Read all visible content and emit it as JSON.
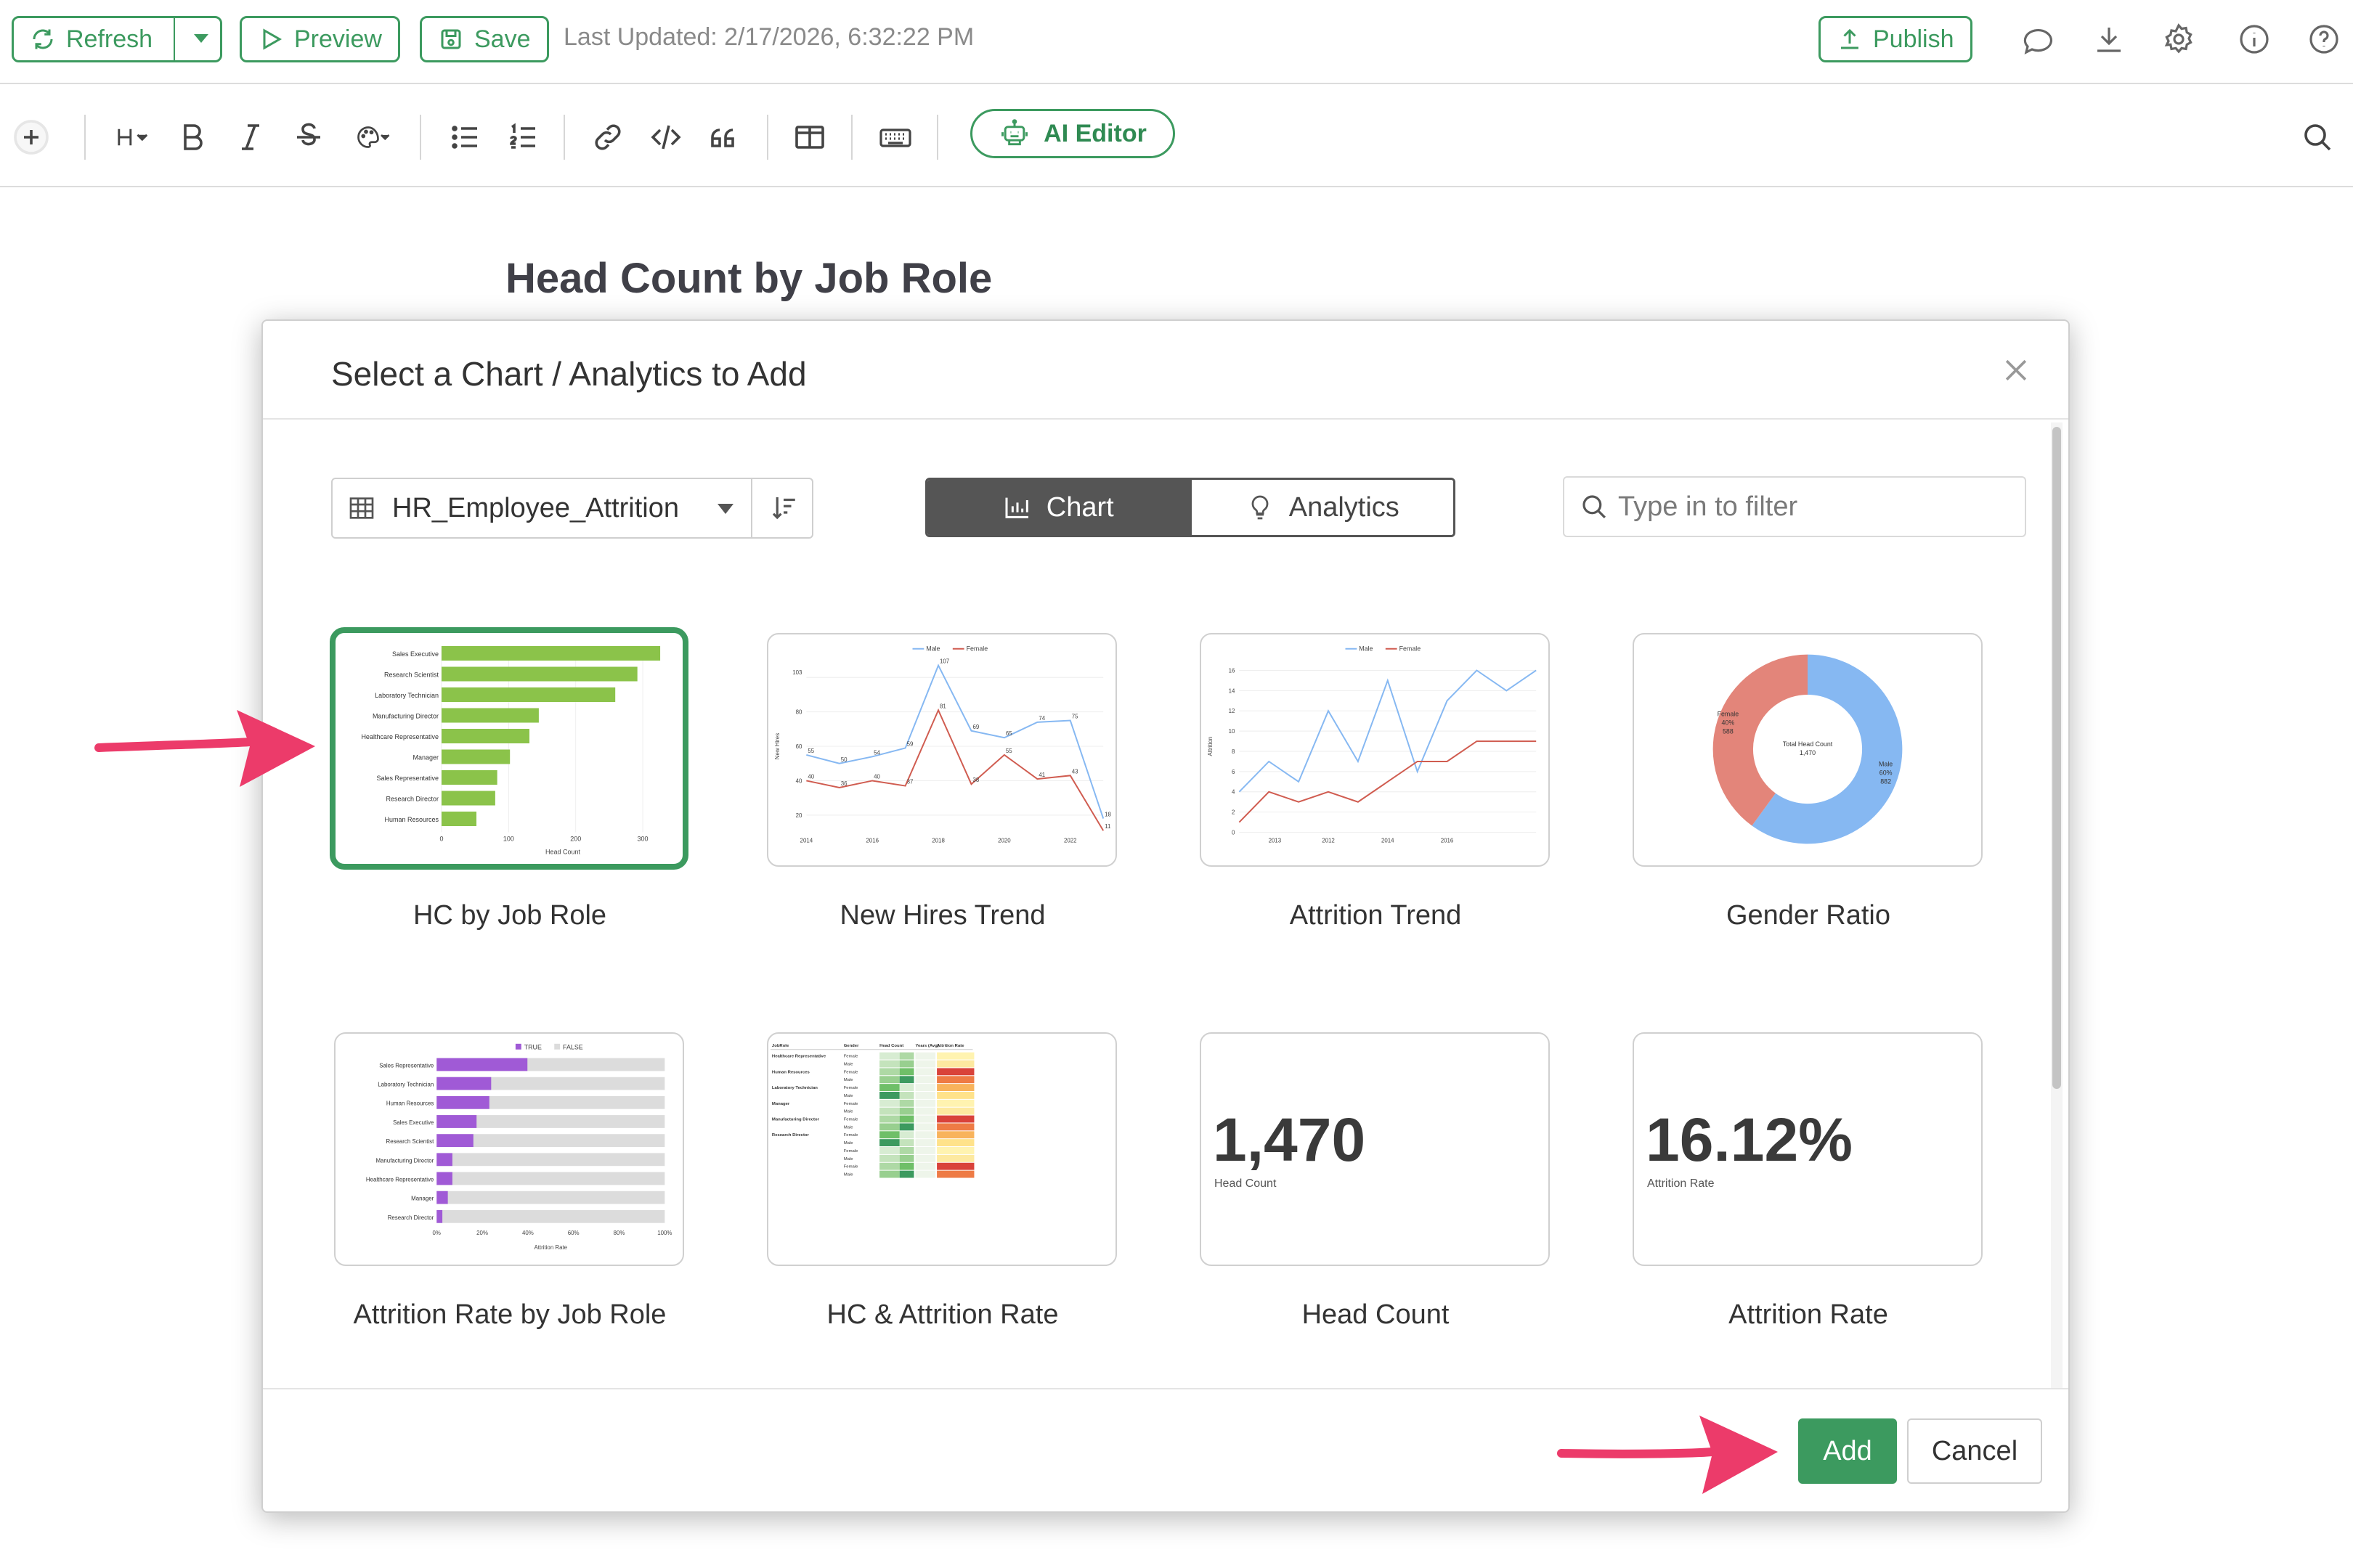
{
  "topbar": {
    "refresh_label": "Refresh",
    "preview_label": "Preview",
    "save_label": "Save",
    "last_updated": "Last Updated: 2/17/2026, 6:32:22 PM",
    "publish_label": "Publish",
    "icons": [
      "comment-icon",
      "download-icon",
      "gear-icon",
      "info-icon",
      "help-icon"
    ]
  },
  "toolbar": {
    "ai_editor_label": "AI Editor",
    "icons": [
      "plus-icon",
      "heading-icon",
      "bold-icon",
      "italic-icon",
      "strikethrough-icon",
      "palette-icon",
      "bullet-list-icon",
      "numbered-list-icon",
      "link-icon",
      "code-icon",
      "quote-icon",
      "columns-icon",
      "keyboard-icon",
      "search-icon"
    ]
  },
  "document": {
    "heading": "Head Count by Job Role"
  },
  "modal": {
    "title": "Select a Chart / Analytics to Add",
    "dataset": "HR_Employee_Attrition",
    "tabs": {
      "chart": "Chart",
      "analytics": "Analytics",
      "active": "chart"
    },
    "filter_placeholder": "Type in to filter",
    "cards": [
      {
        "label": "HC by Job Role",
        "selected": true
      },
      {
        "label": "New Hires Trend",
        "selected": false
      },
      {
        "label": "Attrition Trend",
        "selected": false
      },
      {
        "label": "Gender Ratio",
        "selected": false
      },
      {
        "label": "Attrition Rate by Job Role",
        "selected": false
      },
      {
        "label": "HC & Attrition Rate",
        "selected": false
      },
      {
        "label": "Head Count",
        "selected": false,
        "value": "1,470",
        "sub": "Head Count"
      },
      {
        "label": "Attrition Rate",
        "selected": false,
        "value": "16.12%",
        "sub": "Attrition Rate"
      }
    ],
    "add_label": "Add",
    "cancel_label": "Cancel"
  },
  "thumbnails": {
    "hc_by_job_role": {
      "type": "bar",
      "categories": [
        "Sales Executive",
        "Research Scientist",
        "Laboratory Technician",
        "Manufacturing Director",
        "Healthcare Representative",
        "Manager",
        "Sales Representative",
        "Research Director",
        "Human Resources"
      ],
      "values": [
        326,
        292,
        259,
        145,
        131,
        102,
        83,
        80,
        52
      ],
      "xticks": [
        "0",
        "100",
        "200",
        "300"
      ],
      "xlabel": "Head Count",
      "xmax": 340,
      "color": "#8bc34a"
    },
    "attrition_rate_by_job_role": {
      "type": "bar",
      "categories": [
        "Sales Representative",
        "Laboratory Technician",
        "Human Resources",
        "Sales Executive",
        "Research Scientist",
        "Manufacturing Director",
        "Healthcare Representative",
        "Manager",
        "Research Director"
      ],
      "values": [
        39.8,
        23.9,
        23.1,
        17.5,
        16.1,
        6.9,
        6.9,
        4.9,
        2.5
      ],
      "legend": [
        "TRUE",
        "FALSE"
      ],
      "xticks": [
        "0%",
        "20%",
        "40%",
        "60%",
        "80%",
        "100%"
      ],
      "xlabel": "Attrition Rate",
      "colors": {
        "true": "#a05ad6",
        "false": "#dcdcdc"
      }
    },
    "gender_ratio": {
      "type": "pie",
      "labels": [
        "Male",
        "Female"
      ],
      "values": [
        60,
        40
      ],
      "label_text": {
        "male": "Male",
        "male_pct": "60%",
        "male_n": "882",
        "female": "Female",
        "female_pct": "40%",
        "female_n": "588",
        "center": "Total Head Count",
        "center_n": "1,470"
      },
      "colors": {
        "male": "#86b8f2",
        "female": "#e3857a"
      }
    },
    "new_hires_trend": {
      "type": "line",
      "legend": [
        "Male",
        "Female"
      ],
      "x": [
        2014,
        2015,
        2016,
        2017,
        2018,
        2019,
        2020,
        2021,
        2022,
        2023
      ],
      "male": [
        55,
        50,
        54,
        59,
        107,
        69,
        65,
        74,
        75,
        18
      ],
      "female": [
        40,
        36,
        40,
        37,
        81,
        38,
        55,
        41,
        43,
        11
      ],
      "yticks": [
        "20",
        "40",
        "60",
        "80",
        "103"
      ],
      "xticks": [
        "2014",
        "2016",
        "2018",
        "2020",
        "2022"
      ],
      "ylabel": "New Hires",
      "colors": {
        "male": "#86b8f2",
        "female": "#d05c50"
      }
    },
    "attrition_trend": {
      "type": "line",
      "legend": [
        "Male",
        "Female"
      ],
      "x": [
        2012,
        2013,
        2014,
        2015,
        2016,
        2017,
        2018,
        2019,
        2020,
        2021,
        2022
      ],
      "male": [
        4,
        7,
        5,
        12,
        7,
        15,
        6,
        13,
        16,
        14,
        16
      ],
      "female": [
        1,
        4,
        3,
        4,
        3,
        5,
        7,
        7,
        9,
        9,
        9
      ],
      "yticks": [
        "0",
        "2",
        "4",
        "6",
        "8",
        "10",
        "12",
        "14",
        "16"
      ],
      "xticks": [
        "2013",
        "2012",
        "2014",
        "2016"
      ],
      "ylabel": "Attrition",
      "colors": {
        "male": "#86b8f2",
        "female": "#d05c50"
      }
    },
    "hc_attrition_table": {
      "type": "table",
      "columns": [
        "JobRole",
        "Gender",
        "Head Count",
        "Years (Avg)",
        "Attrition Rate"
      ],
      "rows": [
        "Healthcare Representative",
        "Human Resources",
        "Laboratory Technician",
        "Manager",
        "Manufacturing Director",
        "Research Director"
      ]
    }
  }
}
